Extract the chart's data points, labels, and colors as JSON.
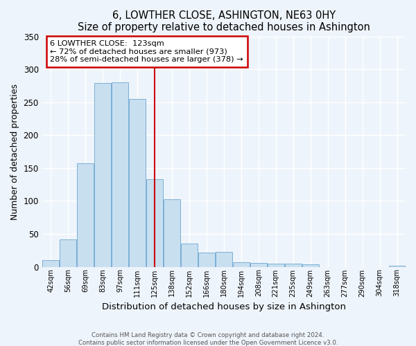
{
  "title": "6, LOWTHER CLOSE, ASHINGTON, NE63 0HY",
  "subtitle": "Size of property relative to detached houses in Ashington",
  "xlabel": "Distribution of detached houses by size in Ashington",
  "ylabel": "Number of detached properties",
  "bar_labels": [
    "42sqm",
    "56sqm",
    "69sqm",
    "83sqm",
    "97sqm",
    "111sqm",
    "125sqm",
    "138sqm",
    "152sqm",
    "166sqm",
    "180sqm",
    "194sqm",
    "208sqm",
    "221sqm",
    "235sqm",
    "249sqm",
    "263sqm",
    "277sqm",
    "290sqm",
    "304sqm",
    "318sqm"
  ],
  "bar_values": [
    10,
    42,
    157,
    279,
    280,
    255,
    133,
    103,
    35,
    22,
    23,
    7,
    6,
    5,
    5,
    4,
    0,
    0,
    0,
    0,
    2
  ],
  "bar_color": "#c8dff0",
  "bar_edge_color": "#7bafd4",
  "property_line_label": "6 LOWTHER CLOSE:  123sqm",
  "annotation_line1": "← 72% of detached houses are smaller (973)",
  "annotation_line2": "28% of semi-detached houses are larger (378) →",
  "box_color": "white",
  "box_edge_color": "#cc0000",
  "vline_color": "#cc0000",
  "vline_x": 6.0,
  "ylim": [
    0,
    350
  ],
  "yticks": [
    0,
    50,
    100,
    150,
    200,
    250,
    300,
    350
  ],
  "footer1": "Contains HM Land Registry data © Crown copyright and database right 2024.",
  "footer2": "Contains public sector information licensed under the Open Government Licence v3.0.",
  "bg_color": "#eef4fb",
  "grid_color": "white"
}
